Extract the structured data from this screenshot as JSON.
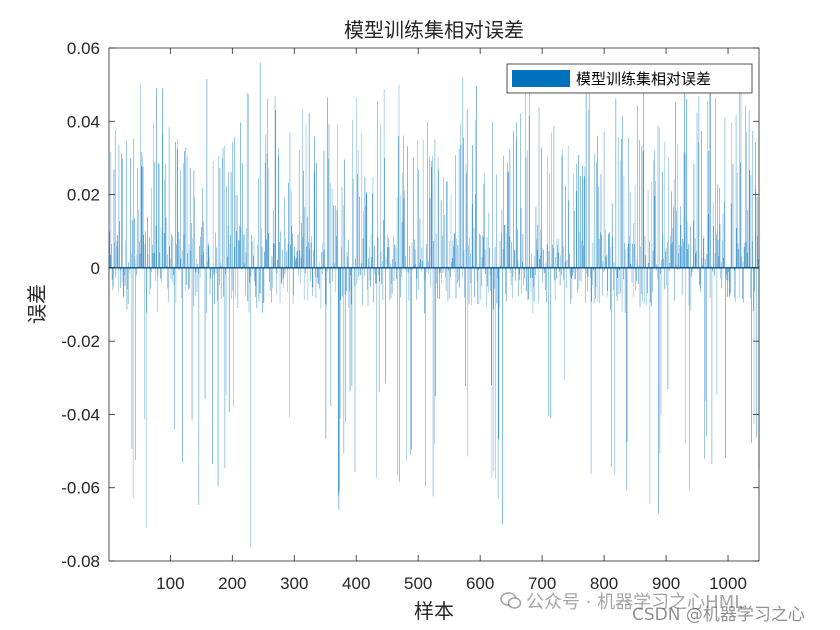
{
  "chart_data": {
    "type": "bar",
    "title": "模型训练集相对误差",
    "xlabel": "样本",
    "ylabel": "误差",
    "xlim": [
      1,
      1050
    ],
    "ylim": [
      -0.08,
      0.06
    ],
    "xticks": [
      100,
      200,
      300,
      400,
      500,
      600,
      700,
      800,
      900,
      1000
    ],
    "yticks": [
      -0.08,
      -0.06,
      -0.04,
      -0.02,
      0,
      0.02,
      0.04,
      0.06
    ],
    "ytick_labels": [
      "-0.08",
      "-0.06",
      "-0.04",
      "-0.02",
      "0",
      "0.02",
      "0.04",
      "0.06"
    ],
    "legend": {
      "entries": [
        "模型训练集相对误差"
      ],
      "location": "top-right"
    },
    "grid": false,
    "n_samples": 1050,
    "series": [
      {
        "name": "模型训练集相对误差",
        "color": "#0072BD",
        "approx_range": [
          -0.076,
          0.056
        ],
        "notable_points": [
          {
            "x": 229,
            "y": -0.076
          },
          {
            "x": 61,
            "y": -0.071
          },
          {
            "x": 245,
            "y": 0.056
          },
          {
            "x": 1050,
            "y": -0.055
          },
          {
            "x": 40,
            "y": -0.063
          },
          {
            "x": 372,
            "y": -0.066
          },
          {
            "x": 636,
            "y": -0.07
          },
          {
            "x": 888,
            "y": -0.067
          },
          {
            "x": 680,
            "y": 0.053
          },
          {
            "x": 572,
            "y": 0.052
          },
          {
            "x": 469,
            "y": 0.05
          },
          {
            "x": 930,
            "y": 0.055
          }
        ]
      }
    ]
  },
  "watermarks": {
    "line1": "公众号 · 机器学习之心HML",
    "line2": "CSDN @机器学习之心"
  }
}
